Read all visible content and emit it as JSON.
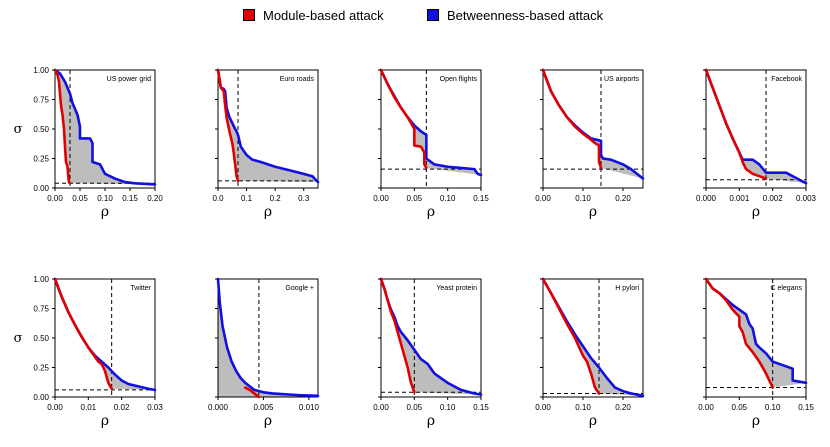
{
  "legend": {
    "module_label": "Module-based attack",
    "betweenness_label": "Betweenness-based attack",
    "module_color": "#e00000",
    "betweenness_color": "#1010e0",
    "fill_color": "#bdbdbd"
  },
  "chart_data": [
    {
      "type": "line",
      "title": "US power grid",
      "xlabel": "ρ",
      "ylabel": "σ",
      "xlim": [
        0,
        0.2
      ],
      "ylim": [
        0,
        1
      ],
      "xticks": [
        "0.00",
        "0.05",
        "0.10",
        "0.15",
        "0.20"
      ],
      "yticks": [
        "0.00",
        "0.25",
        "0.50",
        "0.75",
        "1.00"
      ],
      "threshold_x": 0.03,
      "threshold_y": 0.04,
      "series": [
        {
          "name": "Module-based attack",
          "x": [
            0,
            0.005,
            0.008,
            0.01,
            0.012,
            0.015,
            0.018,
            0.02,
            0.022,
            0.025,
            0.027,
            0.028,
            0.03
          ],
          "y": [
            1.0,
            0.96,
            0.9,
            0.8,
            0.7,
            0.62,
            0.5,
            0.35,
            0.22,
            0.18,
            0.08,
            0.05,
            0.04
          ]
        },
        {
          "name": "Betweenness-based attack",
          "x": [
            0,
            0.01,
            0.02,
            0.025,
            0.03,
            0.035,
            0.045,
            0.05,
            0.05,
            0.06,
            0.07,
            0.075,
            0.075,
            0.09,
            0.1,
            0.12,
            0.14,
            0.16,
            0.2
          ],
          "y": [
            1.0,
            0.97,
            0.9,
            0.85,
            0.8,
            0.72,
            0.62,
            0.52,
            0.42,
            0.42,
            0.42,
            0.38,
            0.22,
            0.2,
            0.12,
            0.08,
            0.05,
            0.04,
            0.03
          ]
        }
      ]
    },
    {
      "type": "line",
      "title": "Euro roads",
      "xlabel": "ρ",
      "ylabel": "σ",
      "xlim": [
        0,
        0.35
      ],
      "ylim": [
        0,
        1
      ],
      "xticks": [
        "0.0",
        "0.1",
        "0.2",
        "0.3"
      ],
      "yticks": [
        "0.00",
        "0.25",
        "0.50",
        "0.75",
        "1.00"
      ],
      "threshold_x": 0.07,
      "threshold_y": 0.06,
      "series": [
        {
          "name": "Module-based attack",
          "x": [
            0,
            0.01,
            0.02,
            0.025,
            0.03,
            0.04,
            0.05,
            0.055,
            0.06,
            0.065,
            0.07
          ],
          "y": [
            1.0,
            0.85,
            0.82,
            0.7,
            0.6,
            0.48,
            0.38,
            0.3,
            0.2,
            0.1,
            0.06
          ]
        },
        {
          "name": "Betweenness-based attack",
          "x": [
            0,
            0.01,
            0.02,
            0.025,
            0.03,
            0.04,
            0.05,
            0.06,
            0.065,
            0.07,
            0.08,
            0.1,
            0.12,
            0.15,
            0.2,
            0.25,
            0.3,
            0.33,
            0.35
          ],
          "y": [
            1.0,
            0.85,
            0.84,
            0.82,
            0.68,
            0.6,
            0.55,
            0.5,
            0.48,
            0.45,
            0.35,
            0.28,
            0.24,
            0.22,
            0.18,
            0.15,
            0.12,
            0.1,
            0.05
          ]
        }
      ]
    },
    {
      "type": "line",
      "title": "Open flights",
      "xlabel": "ρ",
      "ylabel": "σ",
      "xlim": [
        0,
        0.15
      ],
      "ylim": [
        0,
        1
      ],
      "xticks": [
        "0.00",
        "0.05",
        "0.10",
        "0.15"
      ],
      "yticks": [
        "0.00",
        "0.25",
        "0.50",
        "0.75",
        "1.00"
      ],
      "threshold_x": 0.068,
      "threshold_y": 0.16,
      "series": [
        {
          "name": "Module-based attack",
          "x": [
            0,
            0.01,
            0.02,
            0.03,
            0.04,
            0.045,
            0.05,
            0.05,
            0.06,
            0.065,
            0.065,
            0.068
          ],
          "y": [
            1.0,
            0.88,
            0.77,
            0.68,
            0.6,
            0.55,
            0.5,
            0.36,
            0.35,
            0.3,
            0.2,
            0.17
          ]
        },
        {
          "name": "Betweenness-based attack",
          "x": [
            0,
            0.01,
            0.02,
            0.03,
            0.04,
            0.05,
            0.06,
            0.068,
            0.068,
            0.08,
            0.1,
            0.12,
            0.14,
            0.145,
            0.15
          ],
          "y": [
            1.0,
            0.88,
            0.78,
            0.68,
            0.6,
            0.53,
            0.48,
            0.45,
            0.25,
            0.2,
            0.18,
            0.17,
            0.16,
            0.12,
            0.11
          ]
        }
      ]
    },
    {
      "type": "line",
      "title": "US airports",
      "xlabel": "ρ",
      "ylabel": "σ",
      "xlim": [
        0,
        0.25
      ],
      "ylim": [
        0,
        1
      ],
      "xticks": [
        "0.00",
        "0.10",
        "0.20"
      ],
      "yticks": [
        "0.00",
        "0.25",
        "0.50",
        "0.75",
        "1.00"
      ],
      "threshold_x": 0.145,
      "threshold_y": 0.16,
      "series": [
        {
          "name": "Module-based attack",
          "x": [
            0,
            0.02,
            0.04,
            0.06,
            0.08,
            0.1,
            0.12,
            0.13,
            0.14,
            0.14,
            0.145
          ],
          "y": [
            1.0,
            0.82,
            0.7,
            0.6,
            0.52,
            0.46,
            0.41,
            0.38,
            0.36,
            0.22,
            0.17
          ]
        },
        {
          "name": "Betweenness-based attack",
          "x": [
            0,
            0.02,
            0.04,
            0.06,
            0.08,
            0.1,
            0.12,
            0.145,
            0.145,
            0.15,
            0.17,
            0.2,
            0.22,
            0.25
          ],
          "y": [
            1.0,
            0.82,
            0.7,
            0.6,
            0.53,
            0.47,
            0.42,
            0.4,
            0.28,
            0.25,
            0.24,
            0.2,
            0.16,
            0.08
          ]
        }
      ]
    },
    {
      "type": "line",
      "title": "Facebook",
      "xlabel": "ρ",
      "ylabel": "σ",
      "xlim": [
        0,
        0.003
      ],
      "ylim": [
        0,
        1
      ],
      "xticks": [
        "0.000",
        "0.001",
        "0.002",
        "0.003"
      ],
      "yticks": [
        "0.00",
        "0.25",
        "0.50",
        "0.75",
        "1.00"
      ],
      "threshold_x": 0.0018,
      "threshold_y": 0.07,
      "series": [
        {
          "name": "Module-based attack",
          "x": [
            0,
            0.0002,
            0.0004,
            0.0006,
            0.0008,
            0.001,
            0.0011,
            0.0012,
            0.0014,
            0.0016,
            0.0018
          ],
          "y": [
            1.0,
            0.85,
            0.7,
            0.55,
            0.42,
            0.3,
            0.22,
            0.16,
            0.12,
            0.1,
            0.08
          ]
        },
        {
          "name": "Betweenness-based attack",
          "x": [
            0,
            0.0002,
            0.0004,
            0.0006,
            0.0008,
            0.001,
            0.0011,
            0.0014,
            0.0016,
            0.0018,
            0.0024,
            0.0026,
            0.0028,
            0.003
          ],
          "y": [
            1.0,
            0.85,
            0.7,
            0.55,
            0.42,
            0.3,
            0.24,
            0.24,
            0.2,
            0.13,
            0.13,
            0.1,
            0.07,
            0.04
          ]
        }
      ]
    },
    {
      "type": "line",
      "title": "Twitter",
      "xlabel": "ρ",
      "ylabel": "σ",
      "xlim": [
        0,
        0.03
      ],
      "ylim": [
        0,
        1
      ],
      "xticks": [
        "0.00",
        "0.01",
        "0.02",
        "0.03"
      ],
      "yticks": [
        "0.00",
        "0.25",
        "0.50",
        "0.75",
        "1.00"
      ],
      "threshold_x": 0.017,
      "threshold_y": 0.06,
      "series": [
        {
          "name": "Module-based attack",
          "x": [
            0,
            0.002,
            0.004,
            0.006,
            0.008,
            0.01,
            0.012,
            0.013,
            0.014,
            0.015,
            0.016,
            0.017
          ],
          "y": [
            1.0,
            0.85,
            0.72,
            0.61,
            0.51,
            0.42,
            0.34,
            0.3,
            0.28,
            0.22,
            0.12,
            0.07
          ]
        },
        {
          "name": "Betweenness-based attack",
          "x": [
            0,
            0.002,
            0.004,
            0.006,
            0.008,
            0.01,
            0.012,
            0.014,
            0.016,
            0.018,
            0.02,
            0.022,
            0.025,
            0.028,
            0.03
          ],
          "y": [
            1.0,
            0.85,
            0.72,
            0.61,
            0.51,
            0.42,
            0.35,
            0.3,
            0.25,
            0.19,
            0.14,
            0.11,
            0.09,
            0.07,
            0.06
          ]
        }
      ]
    },
    {
      "type": "line",
      "title": "Google +",
      "xlabel": "ρ",
      "ylabel": "σ",
      "xlim": [
        0,
        0.011
      ],
      "ylim": [
        0,
        1
      ],
      "xticks": [
        "0.000",
        "0.005",
        "0.010"
      ],
      "yticks": [
        "0.00",
        "0.25",
        "0.50",
        "0.75",
        "1.00"
      ],
      "threshold_x": 0.0045,
      "threshold_y": 0.0,
      "series": [
        {
          "name": "Module-based attack",
          "x": [
            0.003,
            0.0035,
            0.004,
            0.0045
          ],
          "y": [
            0.08,
            0.06,
            0.03,
            0.0
          ]
        },
        {
          "name": "Betweenness-based attack",
          "x": [
            0,
            0.0002,
            0.0005,
            0.001,
            0.0015,
            0.002,
            0.0025,
            0.003,
            0.0035,
            0.004,
            0.005,
            0.006,
            0.007,
            0.008,
            0.009,
            0.011
          ],
          "y": [
            1.0,
            0.8,
            0.6,
            0.42,
            0.3,
            0.22,
            0.16,
            0.12,
            0.09,
            0.06,
            0.04,
            0.03,
            0.025,
            0.02,
            0.015,
            0.01
          ]
        }
      ]
    },
    {
      "type": "line",
      "title": "Yeast protein",
      "xlabel": "ρ",
      "ylabel": "σ",
      "xlim": [
        0,
        0.15
      ],
      "ylim": [
        0,
        1
      ],
      "xticks": [
        "0.00",
        "0.05",
        "0.10",
        "0.15"
      ],
      "yticks": [
        "0.00",
        "0.25",
        "0.50",
        "0.75",
        "1.00"
      ],
      "threshold_x": 0.05,
      "threshold_y": 0.04,
      "series": [
        {
          "name": "Module-based attack",
          "x": [
            0,
            0.005,
            0.01,
            0.015,
            0.02,
            0.025,
            0.03,
            0.035,
            0.04,
            0.045,
            0.05
          ],
          "y": [
            1.0,
            0.92,
            0.82,
            0.72,
            0.65,
            0.55,
            0.45,
            0.35,
            0.25,
            0.12,
            0.04
          ]
        },
        {
          "name": "Betweenness-based attack",
          "x": [
            0,
            0.005,
            0.01,
            0.015,
            0.02,
            0.025,
            0.03,
            0.04,
            0.05,
            0.06,
            0.07,
            0.08,
            0.1,
            0.12,
            0.14,
            0.15
          ],
          "y": [
            1.0,
            0.92,
            0.82,
            0.74,
            0.68,
            0.6,
            0.55,
            0.48,
            0.4,
            0.32,
            0.28,
            0.2,
            0.12,
            0.06,
            0.03,
            0.02
          ]
        }
      ]
    },
    {
      "type": "line",
      "title": "H pylori",
      "xlabel": "ρ",
      "ylabel": "σ",
      "xlim": [
        0,
        0.25
      ],
      "ylim": [
        0,
        1
      ],
      "xticks": [
        "0.00",
        "0.10",
        "0.20"
      ],
      "yticks": [
        "0.00",
        "0.25",
        "0.50",
        "0.75",
        "1.00"
      ],
      "threshold_x": 0.14,
      "threshold_y": 0.03,
      "series": [
        {
          "name": "Module-based attack",
          "x": [
            0,
            0.02,
            0.04,
            0.06,
            0.08,
            0.1,
            0.11,
            0.12,
            0.13,
            0.14
          ],
          "y": [
            1.0,
            0.88,
            0.75,
            0.62,
            0.5,
            0.35,
            0.3,
            0.2,
            0.08,
            0.03
          ]
        },
        {
          "name": "Betweenness-based attack",
          "x": [
            0,
            0.02,
            0.04,
            0.06,
            0.08,
            0.1,
            0.12,
            0.14,
            0.16,
            0.18,
            0.2,
            0.22,
            0.25
          ],
          "y": [
            1.0,
            0.88,
            0.76,
            0.64,
            0.53,
            0.43,
            0.33,
            0.25,
            0.16,
            0.08,
            0.05,
            0.03,
            0.01
          ]
        }
      ]
    },
    {
      "type": "line",
      "title": "C elegans",
      "xlabel": "ρ",
      "ylabel": "σ",
      "xlim": [
        0,
        0.15
      ],
      "ylim": [
        0,
        1
      ],
      "xticks": [
        "0.00",
        "0.05",
        "0.10",
        "0.15"
      ],
      "yticks": [
        "0.00",
        "0.25",
        "0.50",
        "0.75",
        "1.00"
      ],
      "threshold_x": 0.1,
      "threshold_y": 0.08,
      "series": [
        {
          "name": "Module-based attack",
          "x": [
            0,
            0.01,
            0.02,
            0.03,
            0.04,
            0.05,
            0.05,
            0.055,
            0.06,
            0.07,
            0.08,
            0.09,
            0.1
          ],
          "y": [
            1.0,
            0.92,
            0.88,
            0.82,
            0.74,
            0.68,
            0.6,
            0.55,
            0.45,
            0.38,
            0.3,
            0.2,
            0.08
          ]
        },
        {
          "name": "Betweenness-based attack",
          "x": [
            0,
            0.01,
            0.02,
            0.03,
            0.04,
            0.05,
            0.06,
            0.065,
            0.07,
            0.075,
            0.08,
            0.09,
            0.1,
            0.11,
            0.12,
            0.13,
            0.13,
            0.15
          ],
          "y": [
            1.0,
            0.92,
            0.88,
            0.83,
            0.78,
            0.74,
            0.7,
            0.62,
            0.58,
            0.45,
            0.42,
            0.37,
            0.3,
            0.28,
            0.26,
            0.24,
            0.14,
            0.12
          ]
        }
      ]
    }
  ]
}
